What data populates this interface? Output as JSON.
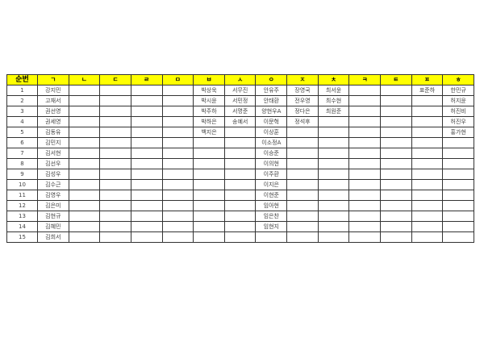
{
  "header": [
    "순번",
    "ㄱ",
    "ㄴ",
    "ㄷ",
    "ㄹ",
    "ㅁ",
    "ㅂ",
    "ㅅ",
    "ㅇ",
    "ㅈ",
    "ㅊ",
    "ㅋ",
    "ㅌ",
    "ㅍ",
    "ㅎ"
  ],
  "header_bg": "#ffff00",
  "rows": [
    [
      "1",
      "강지민",
      "",
      "",
      "",
      "",
      "박상욱",
      "서무진",
      "안유주",
      "장영국",
      "최서윤",
      "",
      "",
      "표준하",
      "한민규"
    ],
    [
      "2",
      "고재서",
      "",
      "",
      "",
      "",
      "박시윤",
      "서민정",
      "안태환",
      "전우영",
      "최수현",
      "",
      "",
      "",
      "허지윤"
    ],
    [
      "3",
      "권선영",
      "",
      "",
      "",
      "",
      "박주하",
      "서명준",
      "양현우A",
      "정다은",
      "최원준",
      "",
      "",
      "",
      "허진비"
    ],
    [
      "4",
      "권세영",
      "",
      "",
      "",
      "",
      "박하은",
      "송예서",
      "이문혁",
      "정석후",
      "",
      "",
      "",
      "",
      "허진우"
    ],
    [
      "5",
      "김동유",
      "",
      "",
      "",
      "",
      "백지은",
      "",
      "이상훈",
      "",
      "",
      "",
      "",
      "",
      "홍가현"
    ],
    [
      "6",
      "김민지",
      "",
      "",
      "",
      "",
      "",
      "",
      "이소정A",
      "",
      "",
      "",
      "",
      "",
      ""
    ],
    [
      "7",
      "김서현",
      "",
      "",
      "",
      "",
      "",
      "",
      "이승준",
      "",
      "",
      "",
      "",
      "",
      ""
    ],
    [
      "8",
      "김선우",
      "",
      "",
      "",
      "",
      "",
      "",
      "이의현",
      "",
      "",
      "",
      "",
      "",
      ""
    ],
    [
      "9",
      "김성우",
      "",
      "",
      "",
      "",
      "",
      "",
      "이주환",
      "",
      "",
      "",
      "",
      "",
      ""
    ],
    [
      "10",
      "김수근",
      "",
      "",
      "",
      "",
      "",
      "",
      "이지은",
      "",
      "",
      "",
      "",
      "",
      ""
    ],
    [
      "11",
      "김영우",
      "",
      "",
      "",
      "",
      "",
      "",
      "이현준",
      "",
      "",
      "",
      "",
      "",
      ""
    ],
    [
      "12",
      "김은미",
      "",
      "",
      "",
      "",
      "",
      "",
      "임아현",
      "",
      "",
      "",
      "",
      "",
      ""
    ],
    [
      "13",
      "김현규",
      "",
      "",
      "",
      "",
      "",
      "",
      "임은찬",
      "",
      "",
      "",
      "",
      "",
      ""
    ],
    [
      "14",
      "김혜민",
      "",
      "",
      "",
      "",
      "",
      "",
      "임현지",
      "",
      "",
      "",
      "",
      "",
      ""
    ],
    [
      "15",
      "김희서",
      "",
      "",
      "",
      "",
      "",
      "",
      "",
      "",
      "",
      "",
      "",
      "",
      ""
    ]
  ]
}
